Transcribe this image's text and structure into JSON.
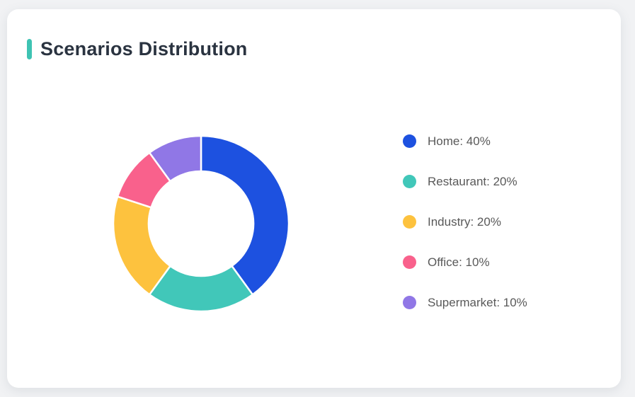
{
  "page": {
    "background_color": "#f1f2f4",
    "card_background_color": "#ffffff"
  },
  "header": {
    "title": "Scenarios Distribution",
    "accent_color": "#3ec3b3",
    "title_color": "#2a3340"
  },
  "chart_data": {
    "type": "pie",
    "variant": "donut",
    "title": "Scenarios Distribution",
    "start_angle_deg": 0,
    "direction": "clockwise",
    "inner_radius_ratio": 0.6,
    "legend_position": "right",
    "label_format": "{name}: {value}%",
    "series": [
      {
        "name": "Home",
        "value": 40,
        "color": "#1d51e0"
      },
      {
        "name": "Restaurant",
        "value": 20,
        "color": "#41c7b9"
      },
      {
        "name": "Industry",
        "value": 20,
        "color": "#fdc23e"
      },
      {
        "name": "Office",
        "value": 10,
        "color": "#f9618c"
      },
      {
        "name": "Supermarket",
        "value": 10,
        "color": "#9077e6"
      }
    ]
  }
}
